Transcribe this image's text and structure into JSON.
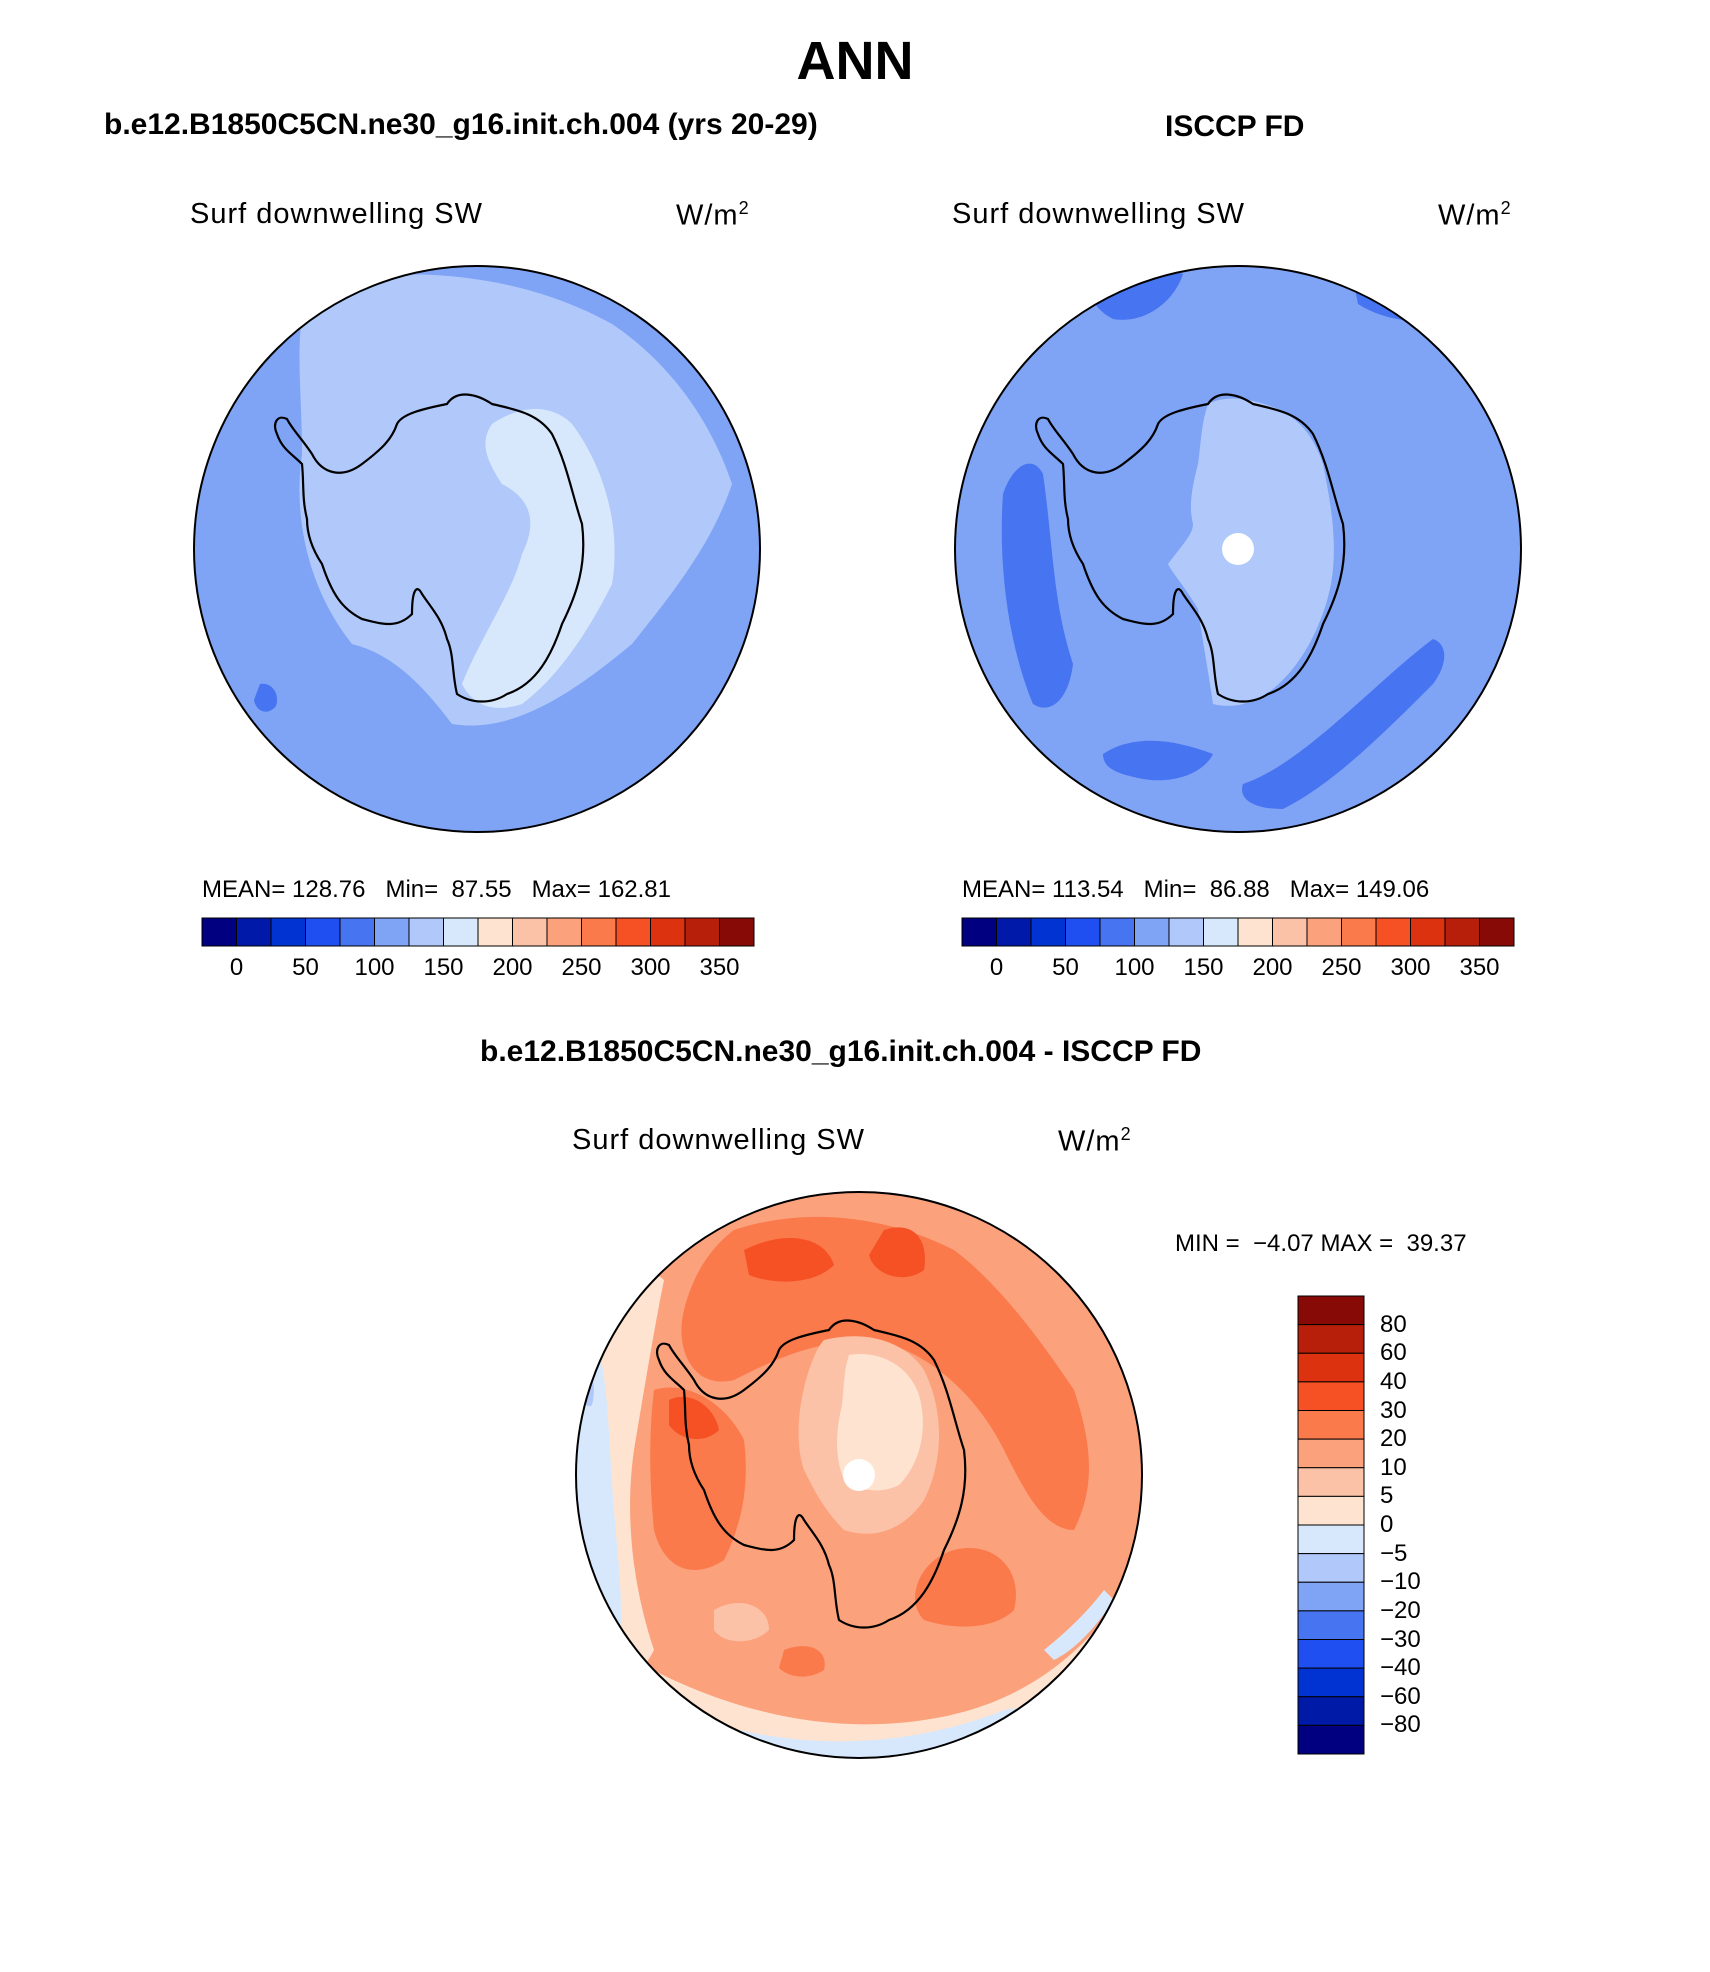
{
  "page_title": "ANN",
  "palette": [
    "#000080",
    "#0019a8",
    "#0033d1",
    "#1f4ff0",
    "#4774f0",
    "#7fa3f5",
    "#b0c9fa",
    "#d8e8fc",
    "#fde3d0",
    "#fcc2a8",
    "#fba17c",
    "#fa7a4c",
    "#f55125",
    "#dd3210",
    "#b71f0a",
    "#870a06"
  ],
  "diff_palette": [
    "#000080",
    "#001aa8",
    "#0033d1",
    "#1f4ff0",
    "#4774f0",
    "#7fa3f5",
    "#b0c9fa",
    "#d8e8fc",
    "#fde3d0",
    "#fcc2a8",
    "#fba17c",
    "#fa7a4c",
    "#f55125",
    "#dd3210",
    "#b71f0a",
    "#870a06"
  ],
  "panels": {
    "model": {
      "title": "b.e12.B1850C5CN.ne30_g16.init.ch.004 (yrs 20-29)",
      "subtitle": "Surf downwelling SW",
      "units": "W/m",
      "units_sup": "2",
      "mean_label": "MEAN=",
      "mean": "128.76",
      "min_label": "Min=",
      "min": "87.55",
      "max_label": "Max=",
      "max": "162.81"
    },
    "obs": {
      "title": "ISCCP FD",
      "subtitle": "Surf downwelling SW",
      "units": "W/m",
      "units_sup": "2",
      "mean_label": "MEAN=",
      "mean": "113.54",
      "min_label": "Min=",
      "min": "86.88",
      "max_label": "Max=",
      "max": "149.06"
    },
    "diff": {
      "title": "b.e12.B1850C5CN.ne30_g16.init.ch.004 - ISCCP FD",
      "subtitle": "Surf downwelling SW",
      "units": "W/m",
      "units_sup": "2",
      "min_label": "MIN =",
      "min": "−4.07",
      "max_label": "MAX =",
      "max": "39.37"
    }
  },
  "colorbar_ticks": [
    "0",
    "50",
    "100",
    "150",
    "200",
    "250",
    "300",
    "350"
  ],
  "diff_colorbar_ticks": [
    "80",
    "60",
    "40",
    "30",
    "20",
    "10",
    "5",
    "0",
    "−5",
    "−10",
    "−20",
    "−30",
    "−40",
    "−60",
    "−80"
  ]
}
